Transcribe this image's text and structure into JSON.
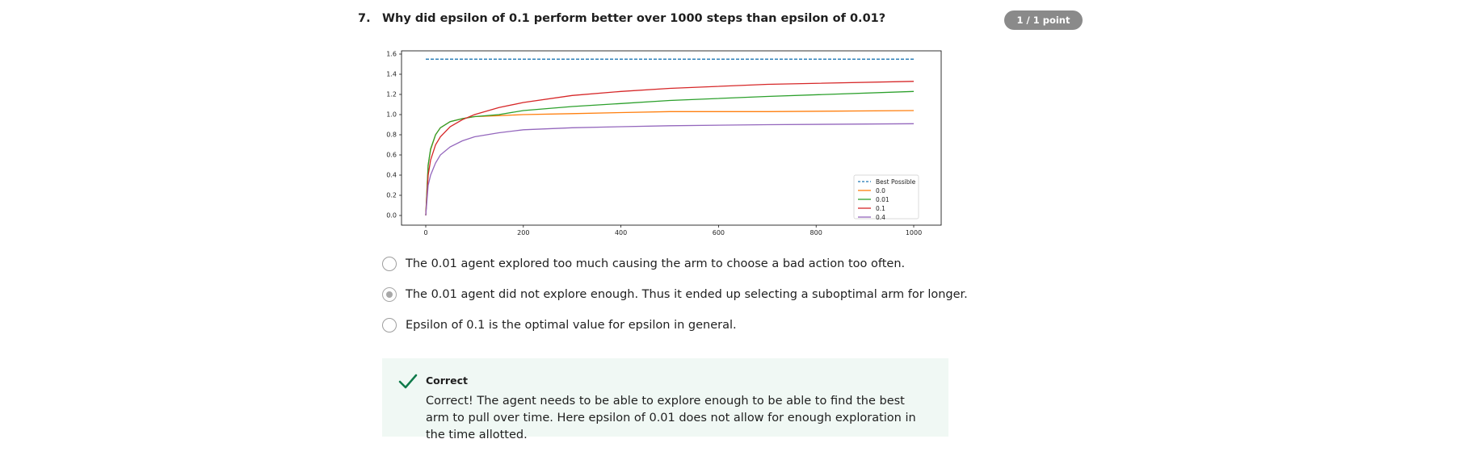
{
  "question": {
    "number": "7.",
    "text": "Why did epsilon of 0.1 perform better over 1000 steps than epsilon of 0.01?",
    "score": "1 / 1 point"
  },
  "options": [
    {
      "label": "The 0.01 agent explored too much causing the arm to choose a bad action too often.",
      "selected": false
    },
    {
      "label": "The 0.01 agent did not explore enough. Thus it ended up selecting a suboptimal arm for longer.",
      "selected": true
    },
    {
      "label": "Epsilon of 0.1 is the optimal value for epsilon in general.",
      "selected": false
    }
  ],
  "feedback": {
    "icon": "check-icon",
    "title": "Correct",
    "text": "Correct! The agent needs to be able to explore enough to be able to find the best arm to pull over time. Here epsilon of 0.01 does not allow for enough exploration in the time allotted.",
    "color": "#0f7a4a"
  },
  "chart_data": {
    "type": "line",
    "xlim": [
      0,
      1000
    ],
    "ylim": [
      -0.05,
      1.62
    ],
    "xticks": [
      "0",
      "200",
      "400",
      "600",
      "800",
      "1000"
    ],
    "yticks": [
      "0.0",
      "0.2",
      "0.4",
      "0.6",
      "0.8",
      "1.0",
      "1.2",
      "1.4",
      "1.6"
    ],
    "legend_position": "bottom-right",
    "series": [
      {
        "name": "Best Possible",
        "color": "#1f77b4",
        "dashed": true,
        "x": [
          0,
          1000
        ],
        "y": [
          1.55,
          1.55
        ]
      },
      {
        "name": "0.0",
        "color": "#ff7f0e",
        "x": [
          0,
          5,
          10,
          20,
          30,
          50,
          75,
          100,
          150,
          200,
          300,
          400,
          500,
          700,
          1000
        ],
        "y": [
          0.0,
          0.5,
          0.65,
          0.8,
          0.87,
          0.93,
          0.96,
          0.98,
          0.99,
          1.0,
          1.01,
          1.02,
          1.03,
          1.03,
          1.04
        ]
      },
      {
        "name": "0.01",
        "color": "#2ca02c",
        "x": [
          0,
          5,
          10,
          20,
          30,
          50,
          75,
          100,
          150,
          200,
          300,
          400,
          500,
          700,
          1000
        ],
        "y": [
          0.0,
          0.5,
          0.66,
          0.8,
          0.87,
          0.93,
          0.96,
          0.98,
          1.0,
          1.04,
          1.08,
          1.11,
          1.14,
          1.18,
          1.23
        ]
      },
      {
        "name": "0.1",
        "color": "#d62728",
        "x": [
          0,
          5,
          10,
          20,
          30,
          50,
          75,
          100,
          150,
          200,
          300,
          400,
          500,
          700,
          1000
        ],
        "y": [
          0.0,
          0.4,
          0.55,
          0.7,
          0.78,
          0.88,
          0.95,
          1.0,
          1.07,
          1.12,
          1.19,
          1.23,
          1.26,
          1.3,
          1.33
        ]
      },
      {
        "name": "0.4",
        "color": "#9467bd",
        "x": [
          0,
          5,
          10,
          20,
          30,
          50,
          75,
          100,
          150,
          200,
          300,
          400,
          500,
          700,
          1000
        ],
        "y": [
          0.0,
          0.3,
          0.4,
          0.52,
          0.6,
          0.68,
          0.74,
          0.78,
          0.82,
          0.85,
          0.87,
          0.88,
          0.89,
          0.9,
          0.91
        ]
      }
    ]
  }
}
